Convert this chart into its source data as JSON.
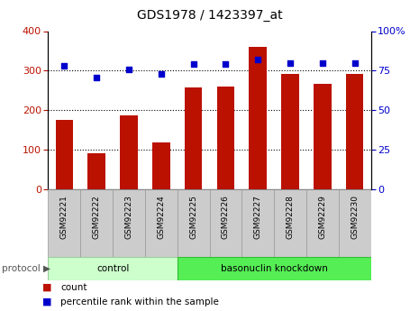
{
  "title": "GDS1978 / 1423397_at",
  "samples": [
    "GSM92221",
    "GSM92222",
    "GSM92223",
    "GSM92224",
    "GSM92225",
    "GSM92226",
    "GSM92227",
    "GSM92228",
    "GSM92229",
    "GSM92230"
  ],
  "counts": [
    175,
    93,
    188,
    120,
    258,
    260,
    360,
    293,
    268,
    292
  ],
  "percentile_ranks": [
    78,
    71,
    76,
    73,
    79,
    79,
    82,
    80,
    80,
    80
  ],
  "groups": [
    {
      "label": "control",
      "n": 4,
      "color": "#ccffcc",
      "edge": "#99cc99"
    },
    {
      "label": "basonuclin knockdown",
      "n": 6,
      "color": "#55ee55",
      "edge": "#33bb33"
    }
  ],
  "bar_color": "#bb1100",
  "dot_color": "#0000cc",
  "left_ylim": [
    0,
    400
  ],
  "right_ylim": [
    0,
    100
  ],
  "left_yticks": [
    0,
    100,
    200,
    300,
    400
  ],
  "right_yticks": [
    0,
    25,
    50,
    75,
    100
  ],
  "right_yticklabels": [
    "0",
    "25",
    "50",
    "75",
    "100%"
  ],
  "grid_values": [
    100,
    200,
    300
  ],
  "bar_width": 0.55,
  "label_box_color": "#cccccc",
  "label_box_edge": "#999999",
  "protocol_label": "protocol",
  "legend_count_label": "count",
  "legend_percentile_label": "percentile rank within the sample"
}
